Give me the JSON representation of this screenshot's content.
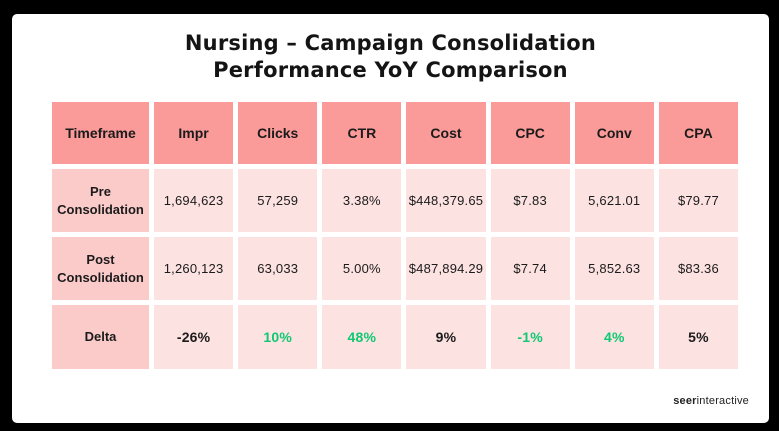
{
  "title": {
    "line1": "Nursing – Campaign Consolidation",
    "line2": "Performance YoY Comparison"
  },
  "chart_data": {
    "type": "table",
    "title": "Nursing – Campaign Consolidation Performance YoY Comparison",
    "columns": [
      "Timeframe",
      "Impr",
      "Clicks",
      "CTR",
      "Cost",
      "CPC",
      "Conv",
      "CPA"
    ],
    "rows": [
      {
        "label": "Pre Consolidation",
        "cells": [
          "1,694,623",
          "57,259",
          "3.38%",
          "$448,379.65",
          "$7.83",
          "5,621.01",
          "$79.77"
        ]
      },
      {
        "label": "Post Consolidation",
        "cells": [
          "1,260,123",
          "63,033",
          "5.00%",
          "$487,894.29",
          "$7.74",
          "5,852.63",
          "$83.36"
        ]
      },
      {
        "label": "Delta",
        "cells": [
          "-26%",
          "10%",
          "48%",
          "9%",
          "-1%",
          "4%",
          "5%"
        ],
        "cell_colors": [
          "black",
          "green",
          "green",
          "black",
          "green",
          "green",
          "black"
        ]
      }
    ]
  },
  "footer": {
    "brand_bold": "seer",
    "brand_regular": "interactive"
  },
  "colors": {
    "frame": "#000000",
    "card_bg": "#ffffff",
    "header_bg": "#fb9b99",
    "row_label_bg": "#fbcbca",
    "data_cell_bg": "#fce2e1",
    "positive_green": "#10c873",
    "text": "#1b1b1b"
  }
}
